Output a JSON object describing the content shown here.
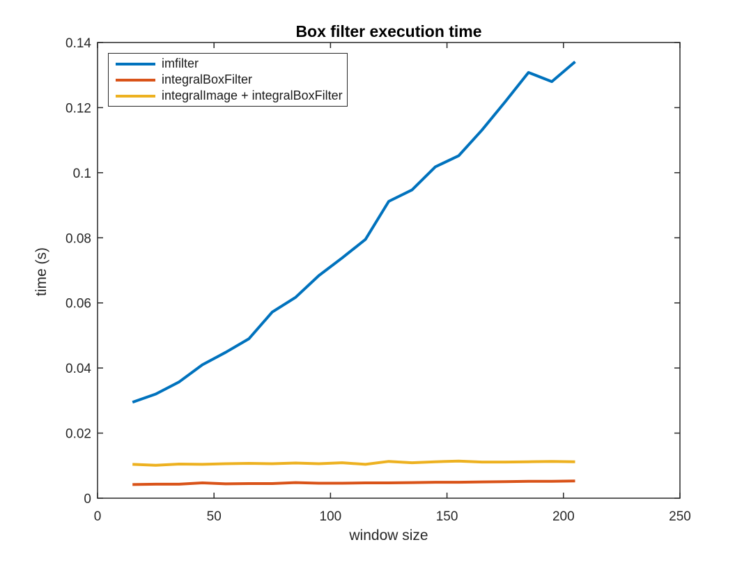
{
  "chart_data": {
    "type": "line",
    "title": "Box filter execution time",
    "xlabel": "window size",
    "ylabel": "time (s)",
    "xlim": [
      0,
      250
    ],
    "ylim": [
      0,
      0.14
    ],
    "x_ticks": [
      0,
      50,
      100,
      150,
      200,
      250
    ],
    "x_tick_labels": [
      "0",
      "50",
      "100",
      "150",
      "200",
      "250"
    ],
    "y_ticks": [
      0,
      0.02,
      0.04,
      0.06,
      0.08,
      0.1,
      0.12,
      0.14
    ],
    "y_tick_labels": [
      "0",
      "0.02",
      "0.04",
      "0.06",
      "0.08",
      "0.1",
      "0.12",
      "0.14"
    ],
    "grid": false,
    "box": true,
    "legend_position": "top-left",
    "axis_color": "#262626",
    "x": [
      15,
      25,
      35,
      45,
      55,
      65,
      75,
      85,
      95,
      105,
      115,
      125,
      135,
      145,
      155,
      165,
      175,
      185,
      195,
      205
    ],
    "series": [
      {
        "name": "imfilter",
        "color": "#0072BD",
        "values": [
          0.0295,
          0.032,
          0.0357,
          0.041,
          0.0448,
          0.049,
          0.0572,
          0.0617,
          0.0684,
          0.0738,
          0.0795,
          0.0912,
          0.0947,
          0.1018,
          0.1052,
          0.1131,
          0.1218,
          0.1308,
          0.128,
          0.1341
        ]
      },
      {
        "name": "integralBoxFilter",
        "color": "#D95319",
        "values": [
          0.0042,
          0.0043,
          0.0043,
          0.0047,
          0.0044,
          0.0045,
          0.0045,
          0.0048,
          0.0046,
          0.0046,
          0.0047,
          0.0047,
          0.0048,
          0.0049,
          0.0049,
          0.005,
          0.0051,
          0.0052,
          0.0052,
          0.0053
        ]
      },
      {
        "name": "integralImage + integralBoxFilter",
        "color": "#EDB120",
        "values": [
          0.0104,
          0.0101,
          0.0105,
          0.0104,
          0.0106,
          0.0107,
          0.0106,
          0.0108,
          0.0106,
          0.0109,
          0.0104,
          0.0113,
          0.0109,
          0.0112,
          0.0114,
          0.0111,
          0.0111,
          0.0112,
          0.0113,
          0.0112
        ]
      }
    ]
  }
}
